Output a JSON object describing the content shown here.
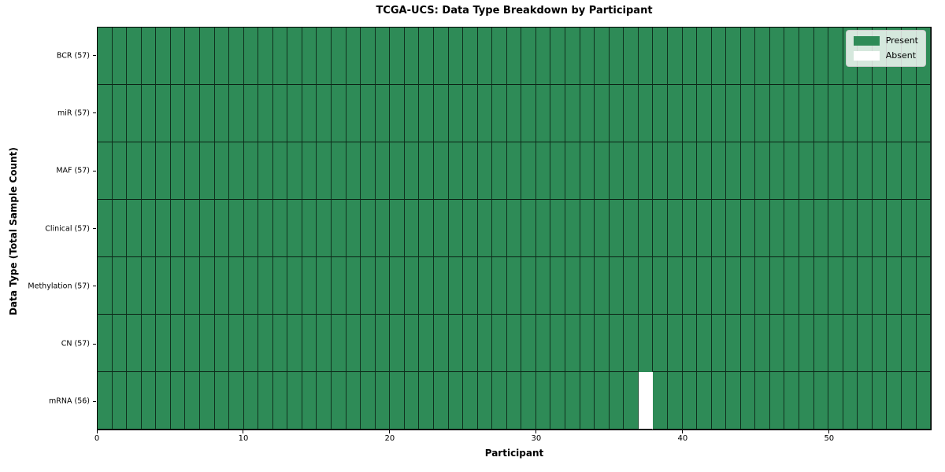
{
  "chart_data": {
    "type": "heatmap",
    "title": "TCGA-UCS: Data Type Breakdown by Participant",
    "xlabel": "Participant",
    "ylabel": "Data Type (Total Sample Count)",
    "n_participants": 57,
    "x_range": [
      0,
      57
    ],
    "xticks": [
      0,
      10,
      20,
      30,
      40,
      50
    ],
    "grid": true,
    "rows": [
      {
        "label": "BCR (57)",
        "data_type": "BCR",
        "total_samples": 57,
        "present_count": 57,
        "absent_participants": []
      },
      {
        "label": "miR (57)",
        "data_type": "miR",
        "total_samples": 57,
        "present_count": 57,
        "absent_participants": []
      },
      {
        "label": "MAF (57)",
        "data_type": "MAF",
        "total_samples": 57,
        "present_count": 57,
        "absent_participants": []
      },
      {
        "label": "Clinical (57)",
        "data_type": "Clinical",
        "total_samples": 57,
        "present_count": 57,
        "absent_participants": []
      },
      {
        "label": "Methylation (57)",
        "data_type": "Methylation",
        "total_samples": 57,
        "present_count": 57,
        "absent_participants": []
      },
      {
        "label": "CN (57)",
        "data_type": "CN",
        "total_samples": 57,
        "present_count": 57,
        "absent_participants": []
      },
      {
        "label": "mRNA (56)",
        "data_type": "mRNA",
        "total_samples": 56,
        "present_count": 56,
        "absent_participants": [
          37
        ]
      }
    ],
    "legend": {
      "position": "upper right",
      "entries": [
        {
          "label": "Present",
          "value": 1,
          "color": "#2e8b57"
        },
        {
          "label": "Absent",
          "value": 0,
          "color": "#ffffff"
        }
      ]
    },
    "colors": {
      "present": "#2e8b57",
      "absent": "#ffffff",
      "cell_edge": "#1a1a1a",
      "spine": "#000000",
      "text": "#000000"
    }
  }
}
